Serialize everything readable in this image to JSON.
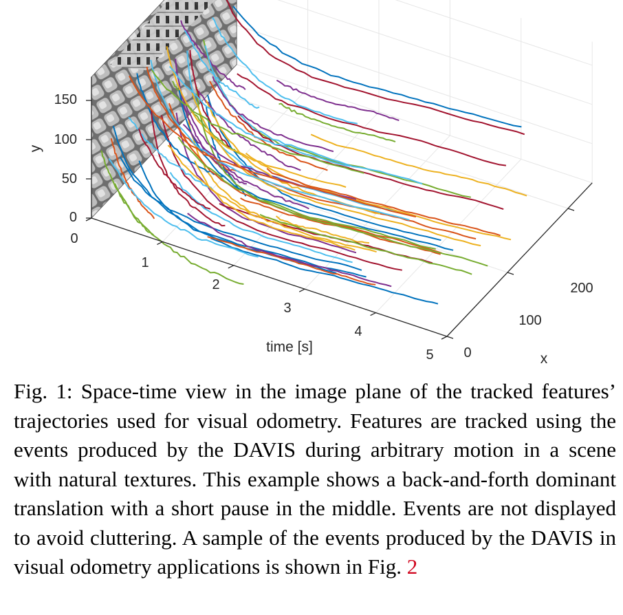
{
  "figure": {
    "y_label": "y",
    "y_ticks": [
      "150",
      "100",
      "50",
      "0"
    ],
    "time_label": "time [s]",
    "time_ticks": [
      "0",
      "1",
      "2",
      "3",
      "4",
      "5"
    ],
    "x_label": "x",
    "x_ticks": [
      "0",
      "100",
      "200"
    ]
  },
  "chart_data": {
    "type": "line",
    "title": "",
    "axes": {
      "time": {
        "label": "time [s]",
        "range": [
          0,
          5
        ]
      },
      "x": {
        "label": "x",
        "range": [
          0,
          240
        ]
      },
      "y": {
        "label": "y",
        "range": [
          0,
          180
        ]
      }
    },
    "grid": true,
    "background_plane": "grayscale camera frame at time 0",
    "series_colors": [
      "#0072bd",
      "#d95319",
      "#edb120",
      "#7e2f8e",
      "#77ac30",
      "#4dbeee",
      "#a2142f"
    ]
  },
  "caption": {
    "prefix": "Fig. 1: Space-time view in the image plane of the tracked features’ trajectories used for visual odometry. Features are tracked using the events produced by the DAVIS during arbitrary motion in a scene with natural textures. This example shows a back-and-forth dominant translation with a short pause in the middle. Events are not displayed to avoid cluttering. A sample of the events produced by the DAVIS in visual odometry applications is shown in Fig.",
    "ref": "2"
  }
}
